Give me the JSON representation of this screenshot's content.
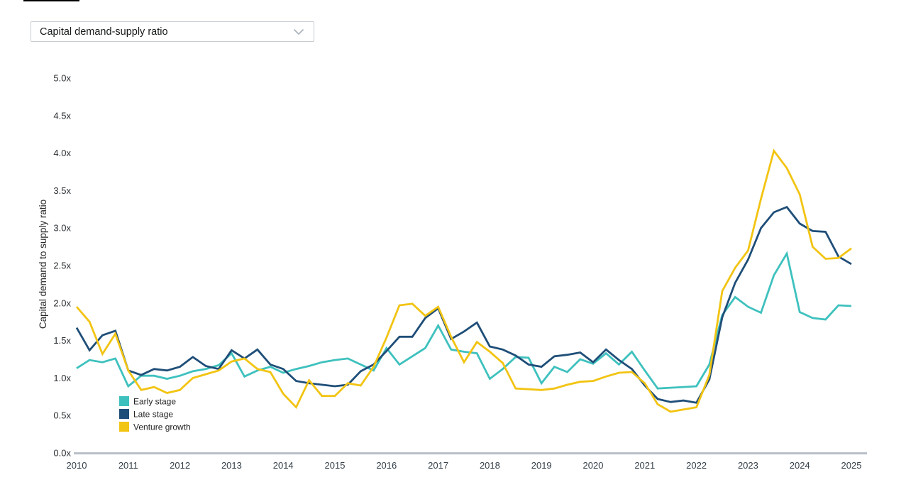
{
  "dropdown": {
    "value": "Capital demand-supply ratio"
  },
  "chart_data": {
    "type": "line",
    "title": "",
    "ylabel": "Capital demand to supply ratio",
    "ylim": [
      0,
      5
    ],
    "ytick_step": 0.5,
    "grid": false,
    "legend_position": "inside-bottom-left",
    "x_unit": "quarterly",
    "x_start": "2010-Q1",
    "x_end": "2025-Q1",
    "ytick_labels": [
      "0.0x",
      "0.5x",
      "1.0x",
      "1.5x",
      "2.0x",
      "2.5x",
      "3.0x",
      "3.5x",
      "4.0x",
      "4.5x",
      "5.0x"
    ],
    "xtick_labels": [
      "2010",
      "2011",
      "2012",
      "2013",
      "2014",
      "2015",
      "2016",
      "2017",
      "2018",
      "2019",
      "2020",
      "2021",
      "2022",
      "2023",
      "2024",
      "2025"
    ],
    "axis_baseline_color": "#b8bfc7",
    "series": [
      {
        "name": "Early stage",
        "color": "#3ec1be",
        "values": [
          1.13,
          1.24,
          1.21,
          1.26,
          0.89,
          1.03,
          1.03,
          0.99,
          1.03,
          1.09,
          1.12,
          1.17,
          1.33,
          1.02,
          1.1,
          1.15,
          1.07,
          1.12,
          1.16,
          1.21,
          1.24,
          1.26,
          1.18,
          1.1,
          1.4,
          1.18,
          1.29,
          1.4,
          1.7,
          1.38,
          1.35,
          1.33,
          0.99,
          1.12,
          1.28,
          1.27,
          0.93,
          1.15,
          1.08,
          1.25,
          1.19,
          1.33,
          1.18,
          1.35,
          1.1,
          0.86,
          0.87,
          0.88,
          0.89,
          1.18,
          1.84,
          2.08,
          1.95,
          1.87,
          2.37,
          2.66,
          1.88,
          1.8,
          1.78,
          1.97,
          1.96
        ]
      },
      {
        "name": "Late stage",
        "color": "#1f4e78",
        "values": [
          1.67,
          1.37,
          1.57,
          1.63,
          1.1,
          1.04,
          1.12,
          1.1,
          1.15,
          1.28,
          1.16,
          1.12,
          1.37,
          1.26,
          1.38,
          1.18,
          1.12,
          0.96,
          0.93,
          0.91,
          0.89,
          0.91,
          1.09,
          1.18,
          1.36,
          1.55,
          1.55,
          1.8,
          1.93,
          1.52,
          1.62,
          1.74,
          1.42,
          1.38,
          1.3,
          1.18,
          1.15,
          1.29,
          1.31,
          1.34,
          1.21,
          1.38,
          1.24,
          1.12,
          0.9,
          0.72,
          0.68,
          0.7,
          0.67,
          0.98,
          1.81,
          2.27,
          2.58,
          3.0,
          3.21,
          3.28,
          3.06,
          2.96,
          2.95,
          2.62,
          2.52
        ]
      },
      {
        "name": "Venture growth",
        "color": "#f2c413",
        "values": [
          1.95,
          1.75,
          1.32,
          1.59,
          1.1,
          0.84,
          0.88,
          0.8,
          0.84,
          1.0,
          1.05,
          1.1,
          1.22,
          1.26,
          1.12,
          1.08,
          0.79,
          0.61,
          0.97,
          0.76,
          0.76,
          0.93,
          0.9,
          1.15,
          1.54,
          1.97,
          1.99,
          1.83,
          1.95,
          1.55,
          1.21,
          1.48,
          1.35,
          1.2,
          0.86,
          0.85,
          0.84,
          0.86,
          0.91,
          0.95,
          0.96,
          1.02,
          1.07,
          1.08,
          0.93,
          0.65,
          0.55,
          0.58,
          0.61,
          1.04,
          2.16,
          2.47,
          2.7,
          3.39,
          4.03,
          3.8,
          3.45,
          2.75,
          2.59,
          2.6,
          2.73
        ]
      }
    ]
  }
}
